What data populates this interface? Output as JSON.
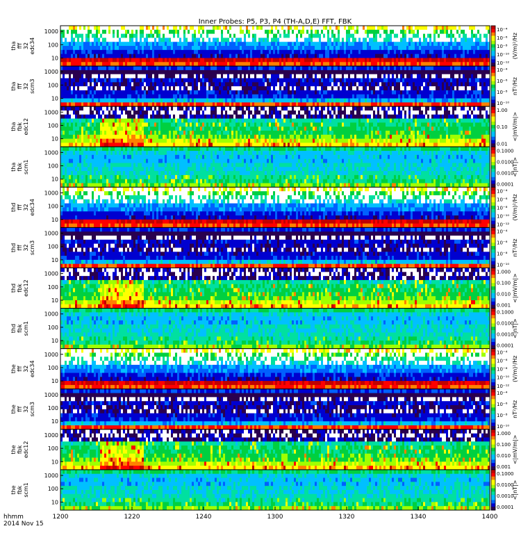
{
  "chart_data": {
    "type": "heatmap",
    "title": "Inner Probes: P5, P3, P4 (TH-A,D,E) FFT, FBK",
    "x_axis": {
      "ticks": [
        "1200",
        "1220",
        "1240",
        "1300",
        "1320",
        "1340",
        "1400"
      ],
      "label_lines": [
        "hhmm",
        "2014 Nov 15"
      ]
    },
    "panels": [
      {
        "probe": "tha",
        "label_lines": [
          "tha",
          "fff",
          "32",
          "edc34"
        ],
        "kind": "fff_e",
        "yticks": [
          "1000",
          "100",
          "10"
        ],
        "cbar_ticks": [
          "10⁻⁴",
          "10⁻⁶",
          "10⁻⁸",
          "10⁻¹⁰",
          "10⁻¹²"
        ],
        "cbar_units": "(V/m)²/Hz"
      },
      {
        "probe": "tha",
        "label_lines": [
          "tha",
          "fff",
          "32",
          "scm3"
        ],
        "kind": "fff_b",
        "yticks": [
          "1000",
          "100",
          "10"
        ],
        "cbar_ticks": [
          "10⁻⁴",
          "10⁻⁶",
          "10⁻⁸",
          "10⁻¹⁰"
        ],
        "cbar_units": "nT²/Hz"
      },
      {
        "probe": "tha",
        "label_lines": [
          "tha",
          "fbk",
          "edc12"
        ],
        "kind": "fbk_e",
        "yticks": [
          "1000",
          "100",
          "10"
        ],
        "cbar_ticks": [
          "1.00",
          "0.10",
          "0.01"
        ],
        "cbar_units": "<|mV/m|>"
      },
      {
        "probe": "tha",
        "label_lines": [
          "tha",
          "fbk",
          "scm1"
        ],
        "kind": "fbk_b",
        "yticks": [
          "1000",
          "100",
          "10"
        ],
        "cbar_ticks": [
          "0.1000",
          "0.0100",
          "0.0010",
          "0.0001"
        ],
        "cbar_units": "<|nT|>"
      },
      {
        "probe": "thd",
        "label_lines": [
          "thd",
          "fff",
          "32",
          "edc34"
        ],
        "kind": "fff_e",
        "yticks": [
          "1000",
          "100",
          "10"
        ],
        "cbar_ticks": [
          "10⁻⁴",
          "10⁻⁶",
          "10⁻⁸",
          "10⁻¹⁰",
          "10⁻¹²"
        ],
        "cbar_units": "(V/m)²/Hz"
      },
      {
        "probe": "thd",
        "label_lines": [
          "thd",
          "fff",
          "32",
          "scm3"
        ],
        "kind": "fff_b",
        "yticks": [
          "1000",
          "100",
          "10"
        ],
        "cbar_ticks": [
          "10⁻⁴",
          "10⁻⁶",
          "10⁻⁸",
          "10⁻¹⁰"
        ],
        "cbar_units": "nT²/Hz"
      },
      {
        "probe": "thd",
        "label_lines": [
          "thd",
          "fbk",
          "edc12"
        ],
        "kind": "fbk_e",
        "yticks": [
          "1000",
          "100",
          "10"
        ],
        "cbar_ticks": [
          "1.000",
          "0.100",
          "0.010",
          "0.001"
        ],
        "cbar_units": "<|mV/m|>"
      },
      {
        "probe": "thd",
        "label_lines": [
          "thd",
          "fbk",
          "scm1"
        ],
        "kind": "fbk_b",
        "yticks": [
          "1000",
          "100",
          "10"
        ],
        "cbar_ticks": [
          "0.1000",
          "0.0100",
          "0.0010",
          "0.0001"
        ],
        "cbar_units": "<|nT|>"
      },
      {
        "probe": "the",
        "label_lines": [
          "the",
          "fff",
          "32",
          "edc34"
        ],
        "kind": "fff_e",
        "yticks": [
          "1000",
          "100",
          "10"
        ],
        "cbar_ticks": [
          "10⁻⁴",
          "10⁻⁶",
          "10⁻⁸",
          "10⁻¹⁰",
          "10⁻¹²"
        ],
        "cbar_units": "(V/m)²/Hz"
      },
      {
        "probe": "the",
        "label_lines": [
          "the",
          "fff",
          "32",
          "scm3"
        ],
        "kind": "fff_b",
        "yticks": [
          "1000",
          "100",
          "10"
        ],
        "cbar_ticks": [
          "10⁻⁴",
          "10⁻⁶",
          "10⁻⁸",
          "10⁻¹⁰"
        ],
        "cbar_units": "nT²/Hz"
      },
      {
        "probe": "the",
        "label_lines": [
          "the",
          "fbk",
          "edc12"
        ],
        "kind": "fbk_e",
        "yticks": [
          "1000",
          "100",
          "10"
        ],
        "cbar_ticks": [
          "1.000",
          "0.100",
          "0.010",
          "0.001"
        ],
        "cbar_units": "<|mV/m|>"
      },
      {
        "probe": "the",
        "label_lines": [
          "the",
          "fbk",
          "scm1"
        ],
        "kind": "fbk_b",
        "yticks": [
          "1000",
          "100",
          "10"
        ],
        "cbar_ticks": [
          "0.1000",
          "0.0100",
          "0.0010",
          "0.0001"
        ],
        "cbar_units": "<|nT|>"
      }
    ],
    "colormap": [
      "#2a004f",
      "#0000d0",
      "#0060ff",
      "#00c0ff",
      "#00e0a0",
      "#00d040",
      "#a0ff00",
      "#ffff00",
      "#ff8000",
      "#ff0000",
      "#c00000"
    ]
  }
}
